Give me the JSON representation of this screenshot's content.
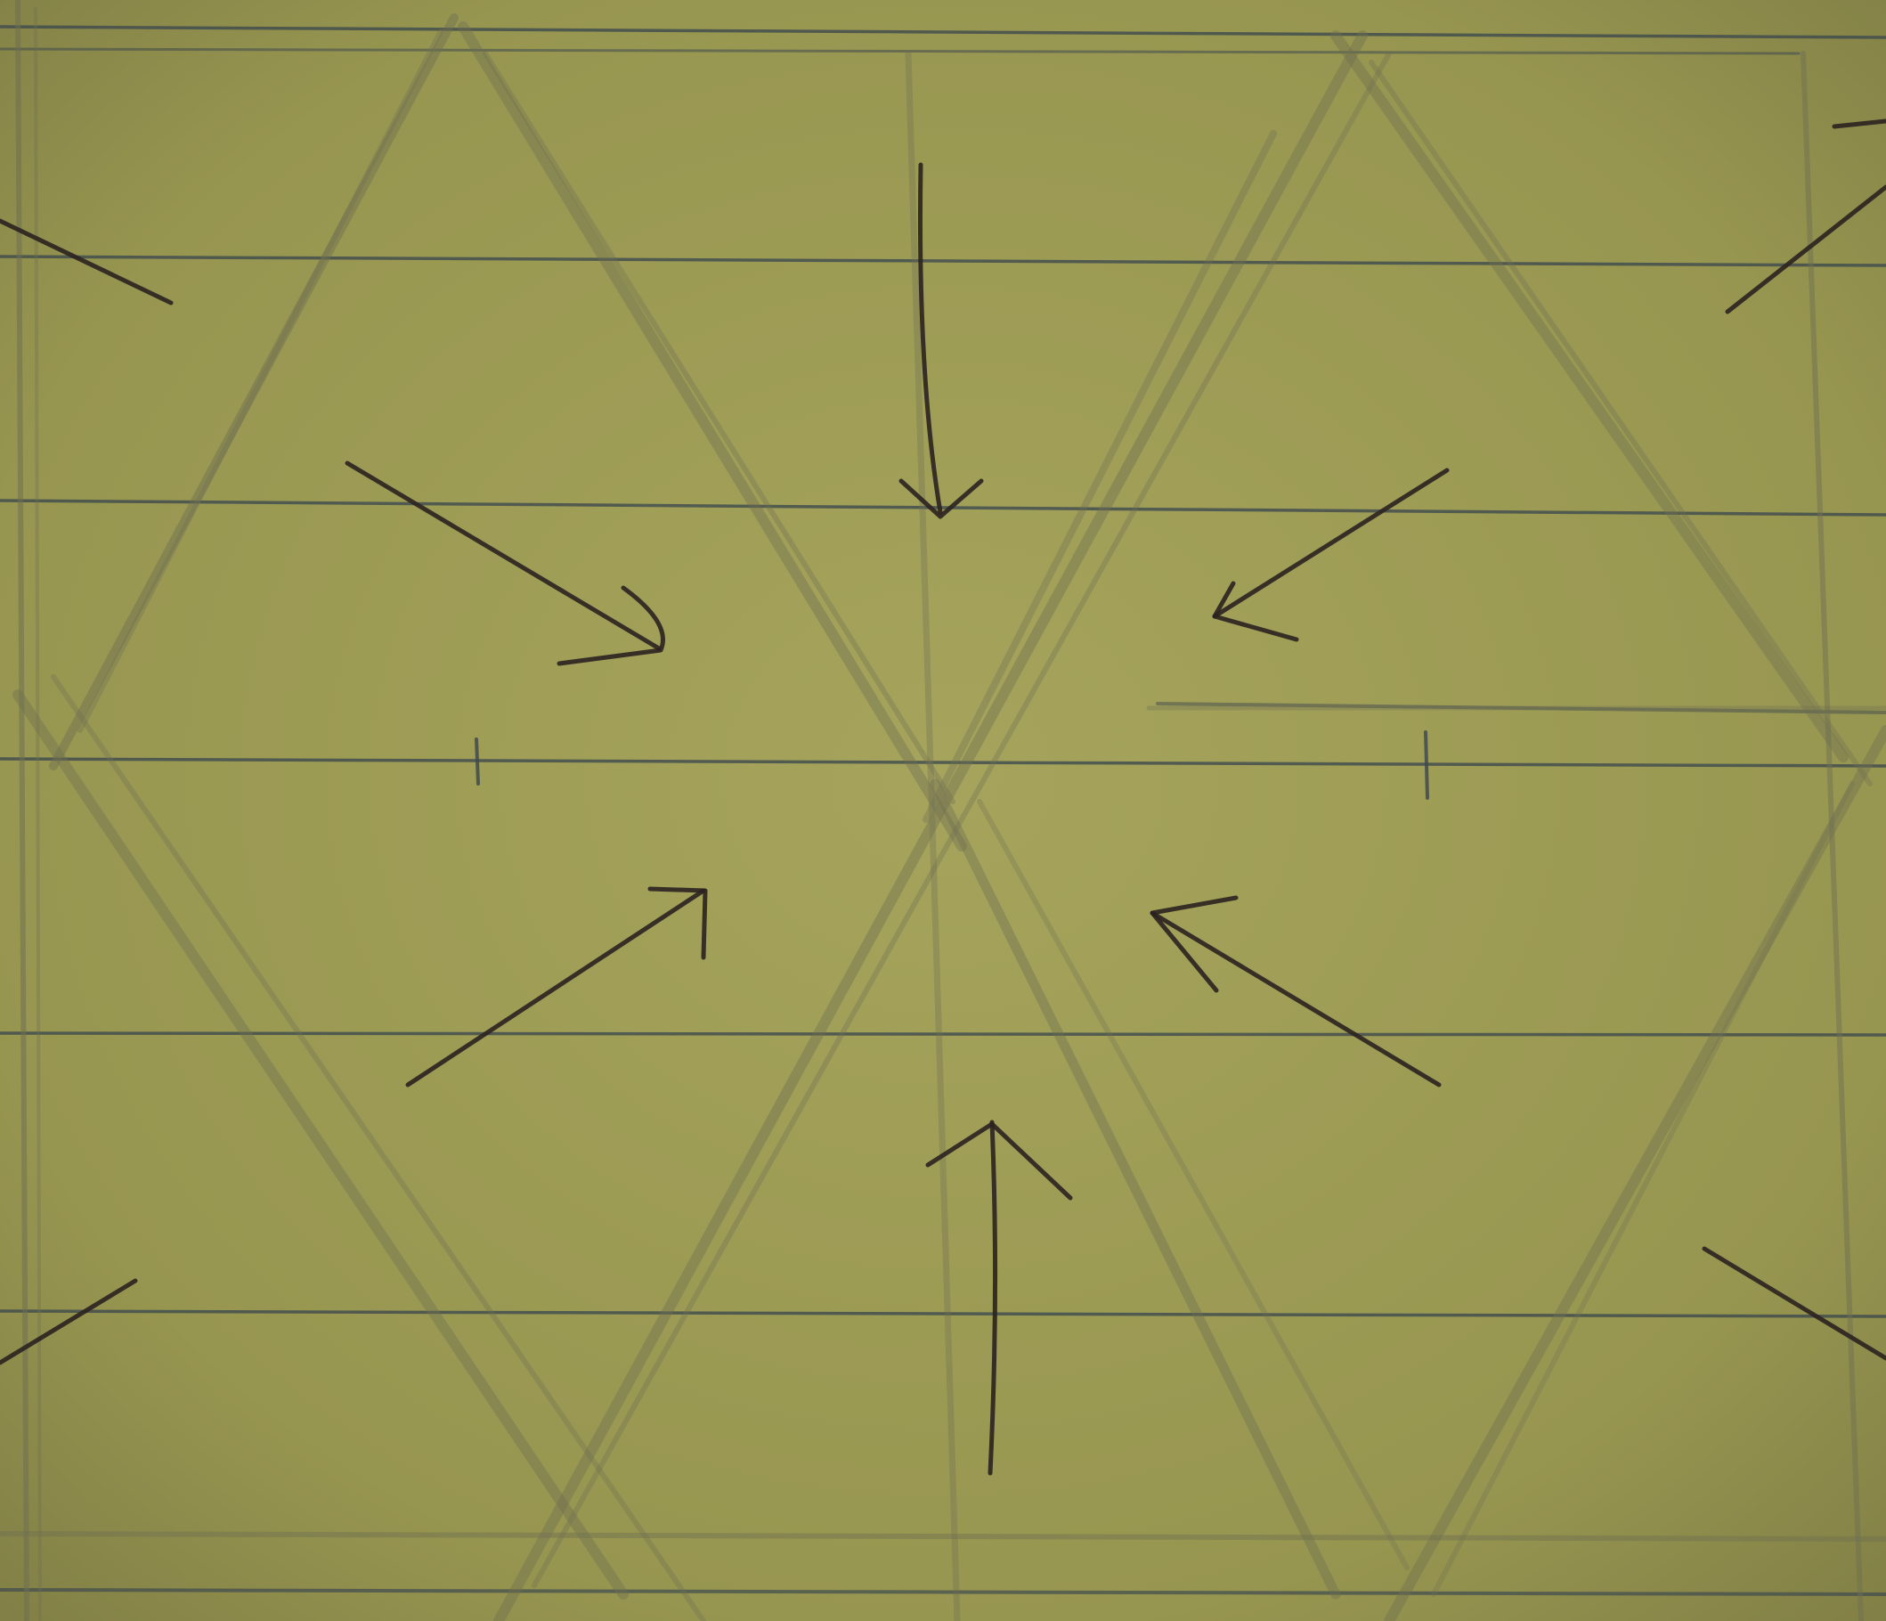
{
  "paper": {
    "color": "#9a9a55",
    "ruled_line_color": "#3f4a4e",
    "pencil_color": "#6f6f52",
    "ink_color": "#2b2220"
  },
  "drawing": {
    "ruled_lines": 6,
    "pencil_strokes": 20,
    "arrows": 12,
    "tick_marks": 2
  }
}
